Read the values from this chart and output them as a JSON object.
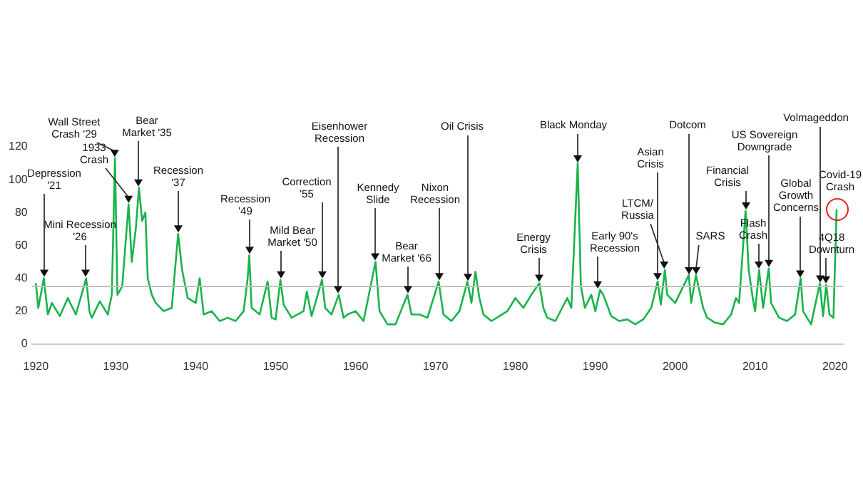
{
  "chart_data": {
    "type": "line",
    "xlim": [
      1919.5,
      2021
    ],
    "xticks": [
      1920,
      1930,
      1940,
      1950,
      1960,
      1970,
      1980,
      1990,
      2000,
      2010,
      2020
    ],
    "ylim": [
      0,
      120
    ],
    "yticks": [
      0,
      20,
      40,
      60,
      80,
      100,
      120
    ],
    "grid": false,
    "legend": false,
    "marker": "none",
    "ref_lines": [
      {
        "axis": "y",
        "value": 35,
        "color": "#c0c0c0"
      }
    ],
    "series": [
      {
        "color": "#19b34a",
        "x": [
          1920,
          1920.3,
          1921,
          1921.5,
          1922,
          1923,
          1924,
          1925,
          1926.3,
          1926.7,
          1927,
          1928,
          1929,
          1929.5,
          1929.9,
          1930.2,
          1930.8,
          1931.6,
          1932,
          1932.5,
          1932.9,
          1933.3,
          1933.7,
          1934,
          1934.5,
          1935,
          1936,
          1937,
          1937.8,
          1938.3,
          1939,
          1940,
          1940.5,
          1941,
          1942,
          1943,
          1944,
          1945,
          1946,
          1946.5,
          1946.7,
          1947,
          1948,
          1949,
          1949.5,
          1950,
          1950.6,
          1951,
          1952,
          1953.5,
          1953.9,
          1954.5,
          1955.8,
          1956.2,
          1957,
          1957.9,
          1958.5,
          1959,
          1960,
          1961,
          1962.5,
          1963,
          1964,
          1965,
          1966.5,
          1967,
          1968,
          1969,
          1970.4,
          1971,
          1972,
          1973,
          1974,
          1974.5,
          1975,
          1975.5,
          1976,
          1977,
          1978,
          1979,
          1980,
          1981,
          1982,
          1983,
          1983.5,
          1984,
          1985,
          1986.5,
          1987,
          1987.8,
          1988.2,
          1988.7,
          1989.5,
          1990,
          1990.6,
          1991,
          1992,
          1993,
          1994,
          1995,
          1996,
          1997,
          1997.8,
          1998.2,
          1998.7,
          1999,
          2000,
          2001.7,
          2002,
          2002.6,
          2003,
          2003.5,
          2004,
          2005,
          2006,
          2007,
          2007.6,
          2008,
          2008.8,
          2009.2,
          2009.7,
          2010,
          2010.5,
          2011,
          2011.7,
          2012,
          2013,
          2014,
          2015,
          2015.7,
          2016,
          2017,
          2018.1,
          2018.5,
          2018.9,
          2019.3,
          2019.8,
          2020.2
        ],
        "values": [
          37,
          22,
          40,
          18,
          25,
          17,
          28,
          18,
          40,
          20,
          16,
          26,
          18,
          30,
          113,
          30,
          35,
          85,
          50,
          70,
          95,
          75,
          80,
          40,
          30,
          25,
          20,
          22,
          67,
          45,
          28,
          25,
          40,
          18,
          20,
          14,
          16,
          14,
          20,
          40,
          54,
          22,
          18,
          38,
          16,
          15,
          39,
          24,
          16,
          20,
          32,
          17,
          39,
          22,
          18,
          30,
          16,
          18,
          20,
          14,
          50,
          20,
          12,
          12,
          30,
          18,
          18,
          16,
          38,
          18,
          14,
          20,
          38,
          25,
          44,
          28,
          18,
          14,
          17,
          20,
          28,
          22,
          30,
          37,
          22,
          16,
          14,
          28,
          22,
          110,
          35,
          22,
          30,
          20,
          33,
          30,
          17,
          14,
          15,
          12,
          15,
          22,
          38,
          24,
          45,
          30,
          25,
          42,
          25,
          42,
          33,
          22,
          16,
          13,
          12,
          18,
          28,
          25,
          81,
          45,
          28,
          20,
          45,
          22,
          46,
          25,
          16,
          14,
          18,
          40,
          20,
          12,
          37,
          17,
          36,
          18,
          16,
          82
        ]
      }
    ],
    "annotations": [
      {
        "text": "Depression\n'21",
        "x": 1921,
        "y": 40
      },
      {
        "text": "Mini Recession\n'26",
        "x": 1926.3,
        "y": 40
      },
      {
        "text": "Wall Street\nCrash '29",
        "x": 1929.9,
        "y": 113
      },
      {
        "text": "1933\nCrash",
        "x": 1931.6,
        "y": 85
      },
      {
        "text": "Bear\nMarket '35",
        "x": 1932.9,
        "y": 95
      },
      {
        "text": "Recession\n'37",
        "x": 1937.8,
        "y": 67
      },
      {
        "text": "Recession\n'49",
        "x": 1946.7,
        "y": 54
      },
      {
        "text": "Mild Bear\nMarket '50",
        "x": 1950.6,
        "y": 39
      },
      {
        "text": "Correction\n'55",
        "x": 1955.8,
        "y": 39
      },
      {
        "text": "Eisenhower\nRecession",
        "x": 1957.9,
        "y": 30
      },
      {
        "text": "Kennedy\nSlide",
        "x": 1962.5,
        "y": 50
      },
      {
        "text": "Bear\nMarket '66",
        "x": 1966.5,
        "y": 30
      },
      {
        "text": "Nixon\nRecession",
        "x": 1970.4,
        "y": 38
      },
      {
        "text": "Oil Crisis",
        "x": 1974,
        "y": 38
      },
      {
        "text": "Energy\nCrisis",
        "x": 1983,
        "y": 37
      },
      {
        "text": "Black Monday",
        "x": 1987.8,
        "y": 110
      },
      {
        "text": "Early 90's\nRecession",
        "x": 1990.3,
        "y": 33
      },
      {
        "text": "Asian\nCrisis",
        "x": 1997.8,
        "y": 38
      },
      {
        "text": "LTCM/\nRussia",
        "x": 1998.7,
        "y": 45
      },
      {
        "text": "Dotcom",
        "x": 2001.7,
        "y": 42
      },
      {
        "text": "SARS",
        "x": 2002.6,
        "y": 42
      },
      {
        "text": "Financial\nCrisis",
        "x": 2008.8,
        "y": 81
      },
      {
        "text": "US Sovereign\nDowngrade",
        "x": 2011.7,
        "y": 46
      },
      {
        "text": "Flash\nCrash",
        "x": 2010.5,
        "y": 45
      },
      {
        "text": "Global\nGrowth\nConcerns",
        "x": 2015.7,
        "y": 40
      },
      {
        "text": "Volmageddon",
        "x": 2018.1,
        "y": 37
      },
      {
        "text": "4Q18\nDownturn",
        "x": 2018.9,
        "y": 36
      },
      {
        "text": "Covid-19\nCrash",
        "x": 2020.2,
        "y": 82
      }
    ]
  }
}
